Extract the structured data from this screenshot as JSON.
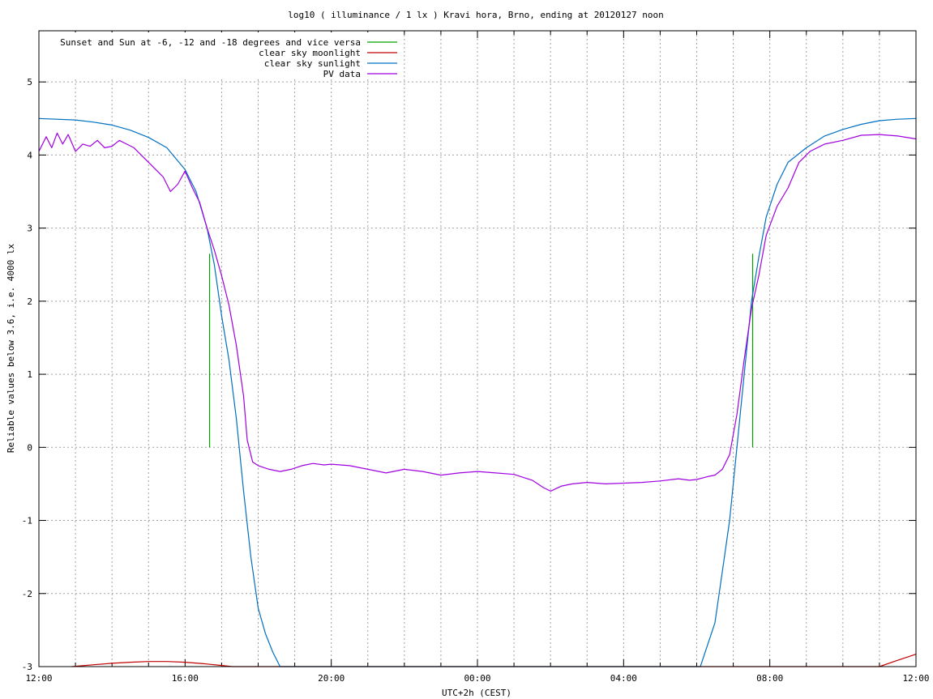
{
  "chart_data": {
    "type": "line",
    "title": "log10 ( illuminance / 1 lx ) Kravi hora, Brno, ending at 20120127 noon",
    "xlabel": "UTC+2h (CEST)",
    "ylabel": "Reliable values below 3.6, i.e. 4000 lx",
    "xlim": [
      0,
      24
    ],
    "ylim": [
      -3,
      5.7
    ],
    "x_ticks": [
      {
        "x": 0,
        "label": "12:00"
      },
      {
        "x": 4,
        "label": "16:00"
      },
      {
        "x": 8,
        "label": "20:00"
      },
      {
        "x": 12,
        "label": "00:00"
      },
      {
        "x": 16,
        "label": "04:00"
      },
      {
        "x": 20,
        "label": "08:00"
      },
      {
        "x": 24,
        "label": "12:00"
      }
    ],
    "y_ticks": [
      {
        "y": -3,
        "label": "-3"
      },
      {
        "y": -2,
        "label": "-2"
      },
      {
        "y": -1,
        "label": "-1"
      },
      {
        "y": 0,
        "label": "0"
      },
      {
        "y": 1,
        "label": "1"
      },
      {
        "y": 2,
        "label": "2"
      },
      {
        "y": 3,
        "label": "3"
      },
      {
        "y": 4,
        "label": "4"
      },
      {
        "y": 5,
        "label": "5"
      }
    ],
    "grid": true,
    "legend_position": "top-left",
    "series": [
      {
        "name": "Sunset and Sun at -6, -12 and -18 degrees and vice versa",
        "color": "#00a000",
        "style": "impulses",
        "points": [
          [
            4.67,
            2.65
          ],
          [
            5.89,
            0.0
          ],
          [
            6.5,
            0.0
          ],
          [
            17.7,
            0.0
          ],
          [
            18.3,
            0.0
          ],
          [
            19.53,
            2.65
          ]
        ]
      },
      {
        "name": "clear sky moonlight",
        "color": "#c00000",
        "style": "line",
        "points": [
          [
            0.9,
            -3.0
          ],
          [
            1.5,
            -2.975
          ],
          [
            2.0,
            -2.955
          ],
          [
            2.5,
            -2.94
          ],
          [
            3.0,
            -2.93
          ],
          [
            3.5,
            -2.93
          ],
          [
            4.0,
            -2.94
          ],
          [
            4.5,
            -2.96
          ],
          [
            5.0,
            -2.985
          ],
          [
            5.3,
            -3.0
          ],
          [
            23.0,
            -3.0
          ],
          [
            23.4,
            -2.93
          ],
          [
            23.7,
            -2.88
          ],
          [
            24.0,
            -2.83
          ]
        ]
      },
      {
        "name": "clear sky sunlight",
        "color": "#0070c0",
        "style": "line",
        "points": [
          [
            0.0,
            4.5
          ],
          [
            1.0,
            4.48
          ],
          [
            1.5,
            4.45
          ],
          [
            2.0,
            4.41
          ],
          [
            2.5,
            4.34
          ],
          [
            3.0,
            4.24
          ],
          [
            3.5,
            4.1
          ],
          [
            4.0,
            3.8
          ],
          [
            4.3,
            3.5
          ],
          [
            4.6,
            3.0
          ],
          [
            4.8,
            2.5
          ],
          [
            5.0,
            1.8
          ],
          [
            5.2,
            1.2
          ],
          [
            5.4,
            0.4
          ],
          [
            5.6,
            -0.6
          ],
          [
            5.8,
            -1.5
          ],
          [
            6.0,
            -2.2
          ],
          [
            6.2,
            -2.55
          ],
          [
            6.4,
            -2.8
          ],
          [
            6.6,
            -3.0
          ],
          [
            18.1,
            -3.0
          ],
          [
            18.3,
            -2.7
          ],
          [
            18.5,
            -2.4
          ],
          [
            18.7,
            -1.7
          ],
          [
            18.9,
            -1.0
          ],
          [
            19.1,
            0.0
          ],
          [
            19.3,
            1.0
          ],
          [
            19.5,
            2.0
          ],
          [
            19.7,
            2.6
          ],
          [
            19.9,
            3.15
          ],
          [
            20.2,
            3.6
          ],
          [
            20.5,
            3.9
          ],
          [
            21.0,
            4.1
          ],
          [
            21.5,
            4.26
          ],
          [
            22.0,
            4.35
          ],
          [
            22.5,
            4.42
          ],
          [
            23.0,
            4.47
          ],
          [
            23.5,
            4.49
          ],
          [
            24.0,
            4.5
          ]
        ]
      },
      {
        "name": "PV data",
        "color": "#a000e0",
        "style": "line",
        "points": [
          [
            0.0,
            4.05
          ],
          [
            0.2,
            4.25
          ],
          [
            0.35,
            4.1
          ],
          [
            0.5,
            4.3
          ],
          [
            0.65,
            4.15
          ],
          [
            0.8,
            4.28
          ],
          [
            1.0,
            4.05
          ],
          [
            1.2,
            4.15
          ],
          [
            1.4,
            4.12
          ],
          [
            1.6,
            4.2
          ],
          [
            1.8,
            4.1
          ],
          [
            2.0,
            4.12
          ],
          [
            2.2,
            4.2
          ],
          [
            2.4,
            4.15
          ],
          [
            2.6,
            4.1
          ],
          [
            2.8,
            4.0
          ],
          [
            3.0,
            3.9
          ],
          [
            3.2,
            3.8
          ],
          [
            3.4,
            3.7
          ],
          [
            3.6,
            3.5
          ],
          [
            3.8,
            3.6
          ],
          [
            4.0,
            3.78
          ],
          [
            4.2,
            3.55
          ],
          [
            4.4,
            3.35
          ],
          [
            4.6,
            3.0
          ],
          [
            4.8,
            2.7
          ],
          [
            5.0,
            2.35
          ],
          [
            5.2,
            1.95
          ],
          [
            5.4,
            1.4
          ],
          [
            5.6,
            0.7
          ],
          [
            5.7,
            0.1
          ],
          [
            5.85,
            -0.2
          ],
          [
            6.0,
            -0.25
          ],
          [
            6.3,
            -0.3
          ],
          [
            6.6,
            -0.33
          ],
          [
            6.9,
            -0.3
          ],
          [
            7.2,
            -0.25
          ],
          [
            7.5,
            -0.22
          ],
          [
            7.8,
            -0.24
          ],
          [
            8.0,
            -0.23
          ],
          [
            8.5,
            -0.25
          ],
          [
            9.0,
            -0.3
          ],
          [
            9.5,
            -0.35
          ],
          [
            10.0,
            -0.3
          ],
          [
            10.5,
            -0.33
          ],
          [
            11.0,
            -0.38
          ],
          [
            11.5,
            -0.35
          ],
          [
            12.0,
            -0.33
          ],
          [
            12.5,
            -0.35
          ],
          [
            13.0,
            -0.37
          ],
          [
            13.5,
            -0.45
          ],
          [
            13.8,
            -0.55
          ],
          [
            14.0,
            -0.6
          ],
          [
            14.3,
            -0.53
          ],
          [
            14.6,
            -0.5
          ],
          [
            15.0,
            -0.48
          ],
          [
            15.5,
            -0.5
          ],
          [
            16.0,
            -0.49
          ],
          [
            16.5,
            -0.48
          ],
          [
            17.0,
            -0.46
          ],
          [
            17.5,
            -0.43
          ],
          [
            17.8,
            -0.45
          ],
          [
            18.0,
            -0.44
          ],
          [
            18.3,
            -0.4
          ],
          [
            18.5,
            -0.38
          ],
          [
            18.7,
            -0.3
          ],
          [
            18.9,
            -0.1
          ],
          [
            19.1,
            0.45
          ],
          [
            19.3,
            1.2
          ],
          [
            19.5,
            1.9
          ],
          [
            19.7,
            2.35
          ],
          [
            19.9,
            2.9
          ],
          [
            20.2,
            3.3
          ],
          [
            20.5,
            3.55
          ],
          [
            20.8,
            3.9
          ],
          [
            21.1,
            4.05
          ],
          [
            21.5,
            4.15
          ],
          [
            22.0,
            4.2
          ],
          [
            22.5,
            4.27
          ],
          [
            23.0,
            4.28
          ],
          [
            23.5,
            4.26
          ],
          [
            24.0,
            4.22
          ]
        ]
      }
    ]
  }
}
